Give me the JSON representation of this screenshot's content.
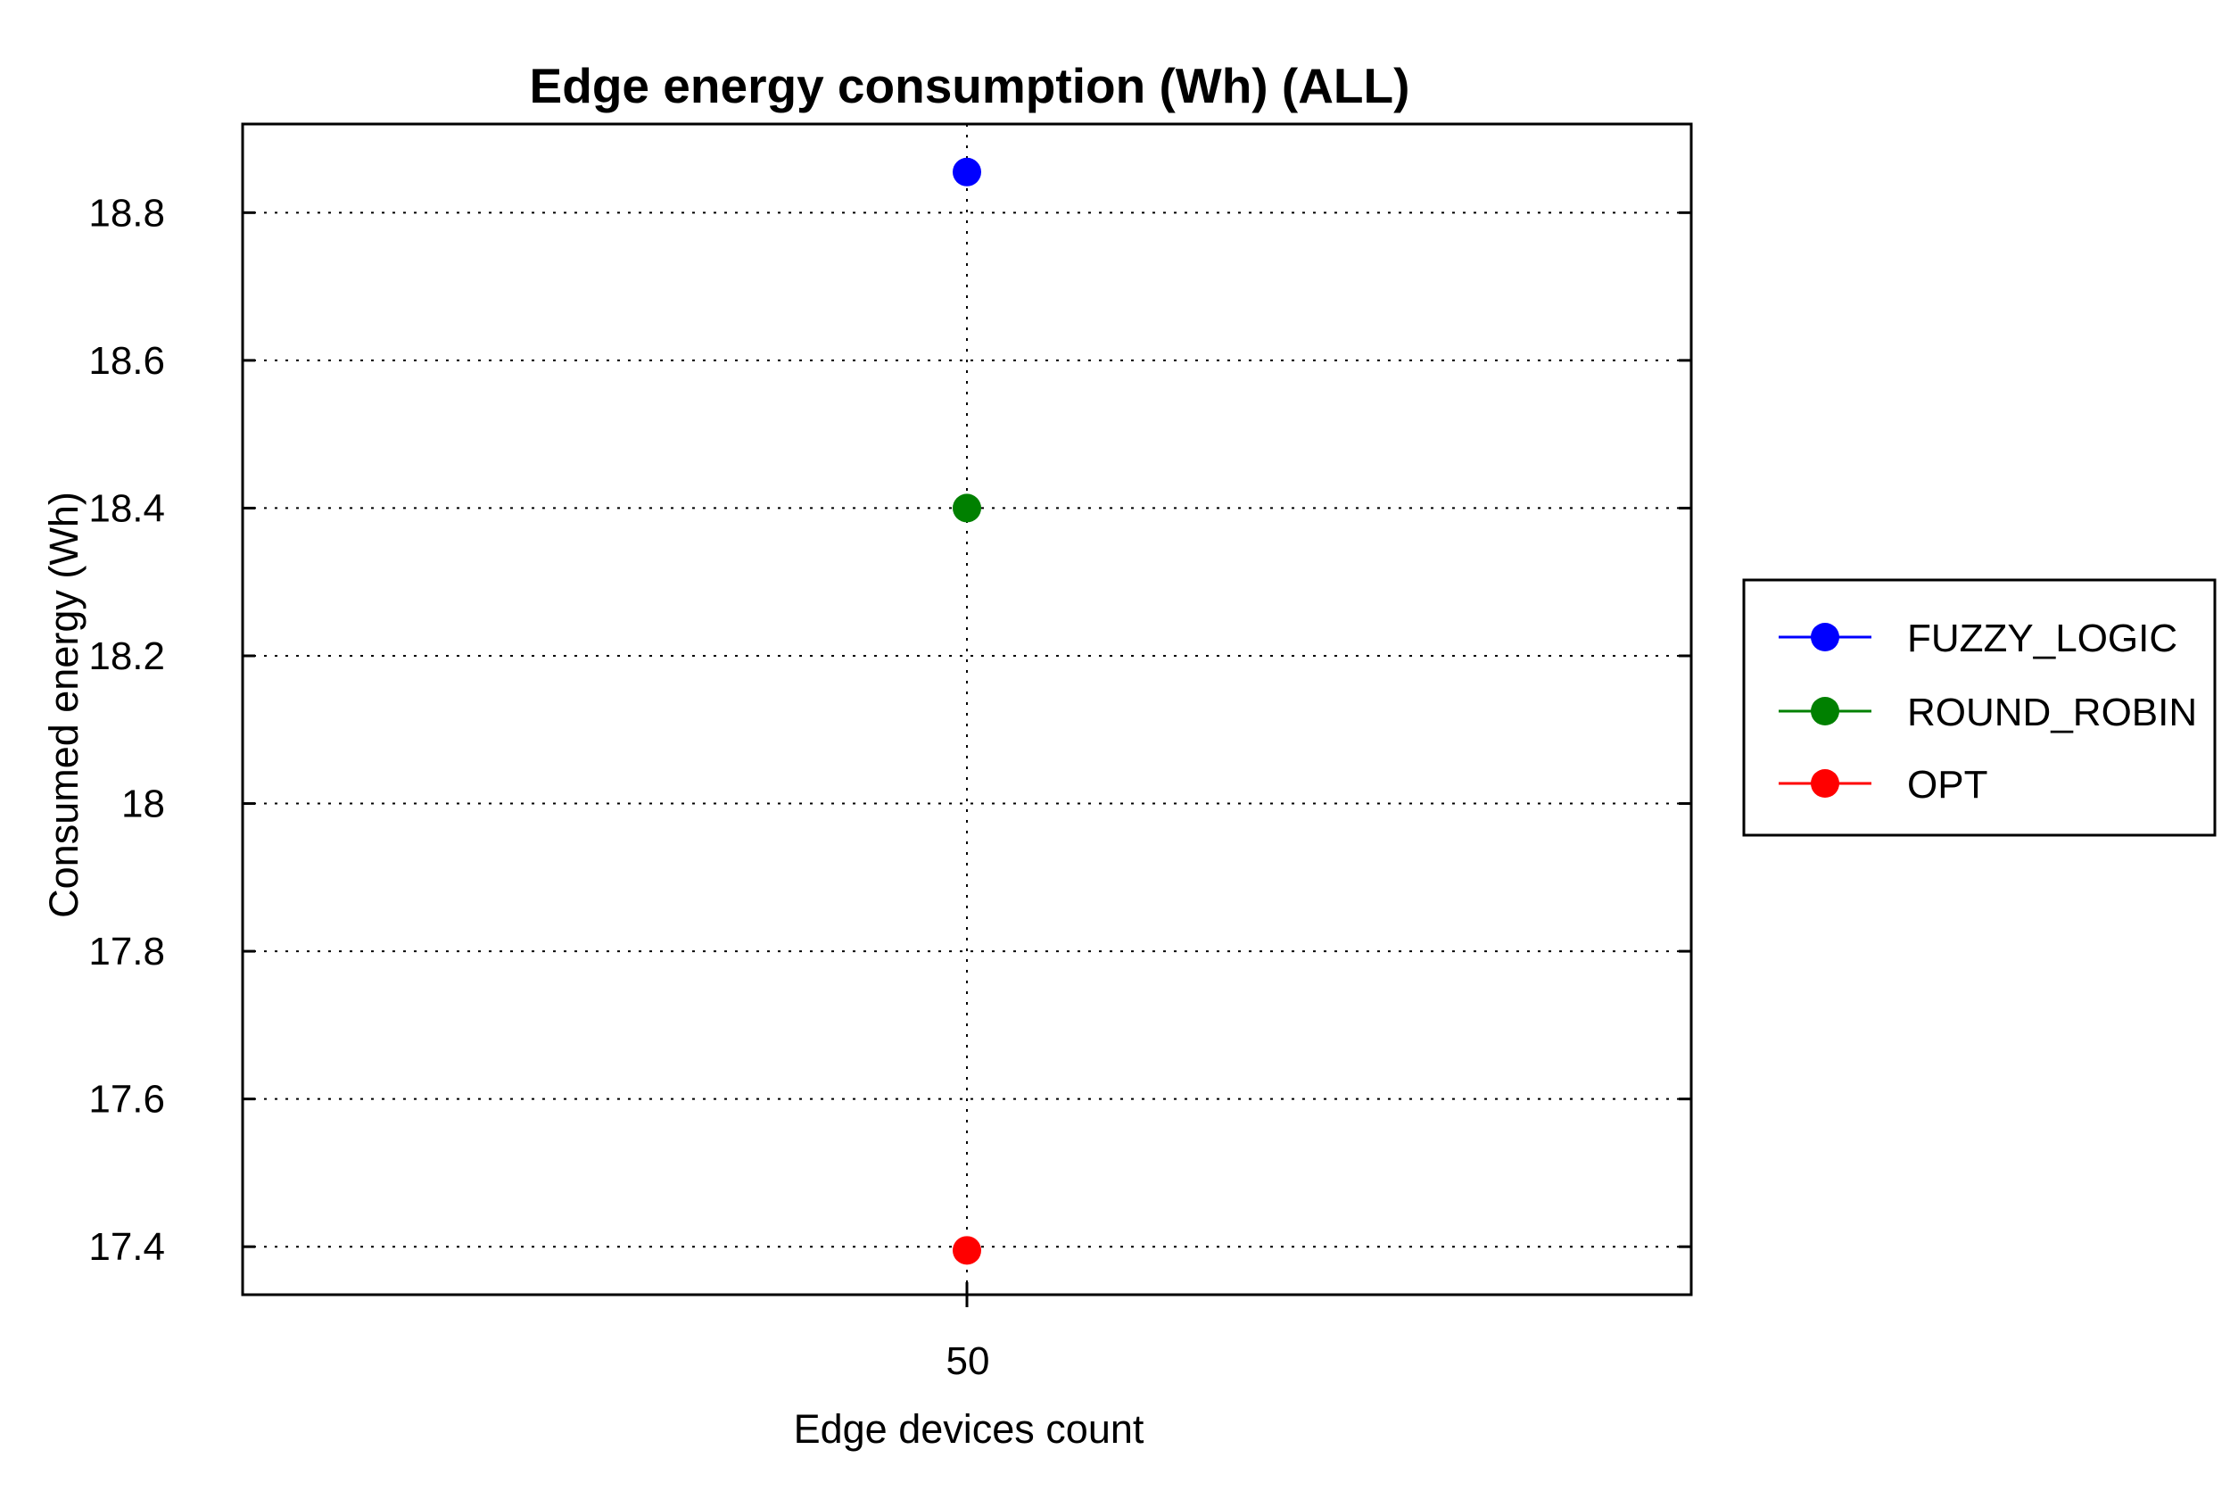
{
  "chart_data": {
    "type": "scatter",
    "title": "Edge energy consumption (Wh) (ALL)",
    "xlabel": "Edge devices count",
    "ylabel": "Consumed energy (Wh)",
    "x_ticks": [
      "50"
    ],
    "y_ticks": [
      "17.4",
      "17.6",
      "17.8",
      "18",
      "18.2",
      "18.4",
      "18.6",
      "18.8"
    ],
    "ylim": [
      17.335,
      18.92
    ],
    "grid": true,
    "legend_position": "right",
    "series": [
      {
        "name": "FUZZY_LOGIC",
        "color": "#0000ff",
        "x": [
          50
        ],
        "y": [
          18.855
        ]
      },
      {
        "name": " ROUND_ROBIN",
        "color": "#008000",
        "x": [
          50
        ],
        "y": [
          18.4
        ]
      },
      {
        "name": "OPT",
        "color": "#ff0000",
        "x": [
          50
        ],
        "y": [
          17.395
        ]
      }
    ]
  }
}
